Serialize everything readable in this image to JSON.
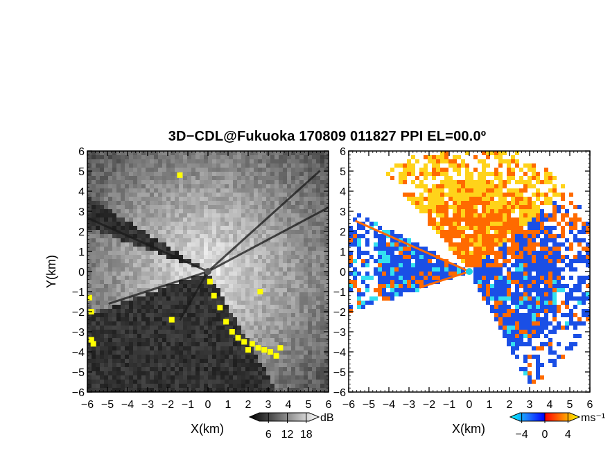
{
  "title": "3D−CDL@Fukuoka 170809 011827 PPI EL=00.0º",
  "chart_data": [
    {
      "type": "heatmap",
      "panel": "reflectivity",
      "xlabel": "X(km)",
      "ylabel": "Y(km)",
      "xlim": [
        -6,
        6
      ],
      "ylim": [
        -6,
        6
      ],
      "xticks": [
        "−6",
        "−5",
        "−4",
        "−3",
        "−2",
        "−1",
        "0",
        "1",
        "2",
        "3",
        "4",
        "5",
        "6"
      ],
      "yticks": [
        "6",
        "5",
        "4",
        "3",
        "2",
        "1",
        "0",
        "−1",
        "−2",
        "−3",
        "−4",
        "−5",
        "−6"
      ],
      "colorbar": {
        "unit": "dB",
        "ticks": [
          "6",
          "12",
          "18"
        ],
        "tick_values": [
          6,
          12,
          18
        ],
        "range": [
          0,
          22
        ],
        "colors": [
          "#000000",
          "#ffffff"
        ]
      },
      "colors": {
        "noise": "#2b2b2b",
        "echo_dark": "#3a3a3a",
        "echo_bright": "#d8d8d8",
        "clutter": "#ffff00"
      }
    },
    {
      "type": "heatmap",
      "panel": "doppler_velocity",
      "xlabel": "X(km)",
      "xlim": [
        -6,
        6
      ],
      "ylim": [
        -6,
        6
      ],
      "xticks": [
        "−6",
        "−5",
        "−4",
        "−3",
        "−2",
        "−1",
        "0",
        "1",
        "2",
        "3",
        "4",
        "5",
        "6"
      ],
      "yticks": [
        "6",
        "5",
        "4",
        "3",
        "2",
        "1",
        "0",
        "−1",
        "−2",
        "−3",
        "−4",
        "−5",
        "−6"
      ],
      "colorbar": {
        "unit": "ms⁻¹",
        "ticks": [
          "−4",
          "0",
          "4"
        ],
        "tick_values": [
          -4,
          0,
          4
        ],
        "range": [
          -6,
          6
        ],
        "colors": [
          "#00ffff",
          "#0000ff",
          "#ff0000",
          "#ffff00"
        ]
      },
      "colors": {
        "toward": "#1a4fe6",
        "away": "#ff6a00",
        "far_away": "#ffd31a",
        "strong_toward": "#33e0f0"
      }
    }
  ]
}
